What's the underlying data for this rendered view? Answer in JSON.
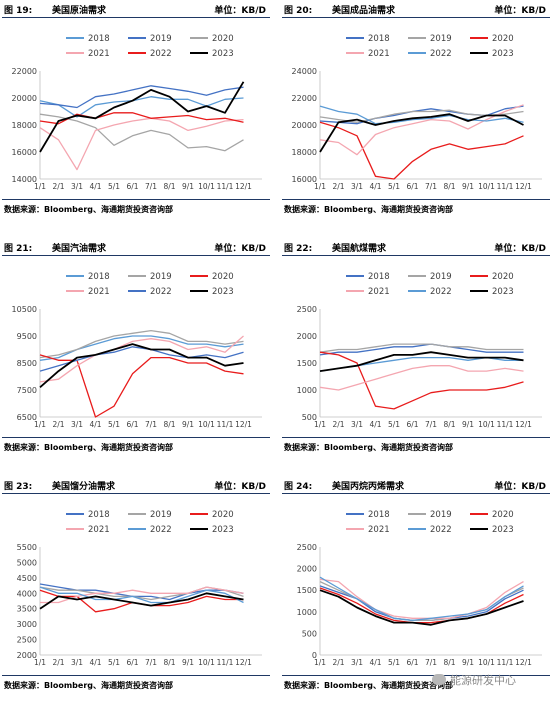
{
  "figures": [
    {
      "num": "图 19:",
      "title": "美国原油需求",
      "unit": "单位：KB/D",
      "source": "数据来源：Bloomberg、海通期货投资咨询部"
    },
    {
      "num": "图 20:",
      "title": "美国成品油需求",
      "unit": "单位：KB/D",
      "source": "数据来源：Bloomberg、海通期货投资咨询部"
    },
    {
      "num": "图 21:",
      "title": "美国汽油需求",
      "unit": "单位：KB/D",
      "source": "数据来源：Bloomberg、海通期货投资咨询部"
    },
    {
      "num": "图 22:",
      "title": "美国航煤需求",
      "unit": "单位：KB/D",
      "source": "数据来源：Bloomberg、海通期货投资咨询部"
    },
    {
      "num": "图 23:",
      "title": "美国馏分油需求",
      "unit": "单位：KB/D",
      "source": "数据来源：Bloomberg、海通期货投资咨询部"
    },
    {
      "num": "图 24:",
      "title": "美国丙烷丙烯需求",
      "unit": "单位：KB/D",
      "source": "数据来源：Bloomberg、海通期货投资咨询部"
    }
  ],
  "watermark": "能源研发中心",
  "series_colors": {
    "2018": "#5b9bd5",
    "2019": "#4472c4",
    "2020": "#a5a5a5",
    "2021": "#f4a6b0",
    "2022": "#e81c1c",
    "2023": "#000000"
  },
  "chart_data": [
    {
      "type": "line",
      "x": [
        "1/1",
        "2/1",
        "3/1",
        "4/1",
        "5/1",
        "6/1",
        "7/1",
        "8/1",
        "9/1",
        "10/1",
        "11/1",
        "12/1"
      ],
      "ylim": [
        14000,
        22000
      ],
      "yticks": [
        14000,
        16000,
        18000,
        20000,
        22000
      ],
      "legend": "top",
      "series": [
        {
          "name": "2018",
          "color": "#5b9bd5",
          "values": [
            19800,
            19500,
            18600,
            19500,
            19700,
            19800,
            20100,
            19900,
            19900,
            19400,
            19900,
            20000
          ]
        },
        {
          "name": "2019",
          "color": "#4472c4",
          "values": [
            19600,
            19500,
            19300,
            20100,
            20300,
            20600,
            20900,
            20700,
            20500,
            20200,
            20600,
            20800
          ]
        },
        {
          "name": "2020",
          "color": "#a5a5a5",
          "values": [
            18800,
            18600,
            18300,
            17800,
            16500,
            17200,
            17600,
            17300,
            16300,
            16400,
            16100,
            16900
          ]
        },
        {
          "name": "2021",
          "color": "#f4a6b0",
          "values": [
            17800,
            16900,
            14700,
            17600,
            18000,
            18300,
            18500,
            18300,
            17600,
            17900,
            18300,
            18400
          ]
        },
        {
          "name": "2022",
          "color": "#e81c1c",
          "values": [
            18300,
            18100,
            18800,
            18500,
            18900,
            18900,
            18500,
            18600,
            18700,
            18400,
            18500,
            18200
          ]
        },
        {
          "name": "2023",
          "color": "#000000",
          "values": [
            16000,
            18300,
            18700,
            18500,
            19300,
            19800,
            20600,
            20100,
            19000,
            19400,
            18900,
            21200
          ]
        }
      ]
    },
    {
      "type": "line",
      "x": [
        "1/1",
        "2/1",
        "3/1",
        "4/1",
        "5/1",
        "6/1",
        "7/1",
        "8/1",
        "9/1",
        "10/1",
        "11/1",
        "12/1"
      ],
      "ylim": [
        16000,
        24000
      ],
      "yticks": [
        16000,
        18000,
        20000,
        22000,
        24000
      ],
      "legend": "top",
      "series": [
        {
          "name": "2018",
          "color": "#4472c4",
          "values": [
            20300,
            20200,
            20100,
            20500,
            20700,
            21000,
            21200,
            21000,
            20800,
            20700,
            21200,
            21400
          ]
        },
        {
          "name": "2019",
          "color": "#a5a5a5",
          "values": [
            20600,
            20400,
            20200,
            20500,
            20800,
            21000,
            21000,
            21100,
            20800,
            20700,
            20800,
            21000
          ]
        },
        {
          "name": "2020",
          "color": "#e81c1c",
          "values": [
            20200,
            19800,
            19200,
            16200,
            15800,
            17300,
            18200,
            18600,
            18200,
            18400,
            18600,
            19200
          ]
        },
        {
          "name": "2021",
          "color": "#f4a6b0",
          "values": [
            18900,
            18700,
            17800,
            19300,
            19800,
            20100,
            20400,
            20300,
            19700,
            20400,
            21000,
            21500
          ]
        },
        {
          "name": "2022",
          "color": "#5b9bd5",
          "values": [
            21400,
            21000,
            20800,
            20100,
            20200,
            20400,
            20500,
            20700,
            20400,
            20300,
            20500,
            20200
          ]
        },
        {
          "name": "2023",
          "color": "#000000",
          "values": [
            18000,
            20200,
            20400,
            20000,
            20300,
            20500,
            20600,
            20800,
            20300,
            20700,
            20700,
            20000
          ]
        }
      ]
    },
    {
      "type": "line",
      "x": [
        "1/1",
        "2/1",
        "3/1",
        "4/1",
        "5/1",
        "6/1",
        "7/1",
        "8/1",
        "9/1",
        "10/1",
        "11/1",
        "12/1"
      ],
      "ylim": [
        6500,
        10500
      ],
      "yticks": [
        6500,
        7500,
        8500,
        9500,
        10500
      ],
      "legend": "top",
      "series": [
        {
          "name": "2018",
          "color": "#5b9bd5",
          "values": [
            8600,
            8700,
            9000,
            9200,
            9400,
            9500,
            9500,
            9400,
            9200,
            9200,
            9100,
            9200
          ]
        },
        {
          "name": "2019",
          "color": "#a5a5a5",
          "values": [
            8700,
            8800,
            9000,
            9300,
            9500,
            9600,
            9700,
            9600,
            9300,
            9300,
            9200,
            9300
          ]
        },
        {
          "name": "2020",
          "color": "#e81c1c",
          "values": [
            8800,
            8600,
            8600,
            5800,
            6900,
            8100,
            8700,
            8700,
            8500,
            8500,
            8200,
            8100
          ]
        },
        {
          "name": "2021",
          "color": "#f4a6b0",
          "values": [
            7800,
            7900,
            8400,
            8800,
            9000,
            9300,
            9400,
            9300,
            9000,
            9100,
            8900,
            9500
          ]
        },
        {
          "name": "2022",
          "color": "#4472c4",
          "values": [
            8200,
            8400,
            8600,
            8800,
            8900,
            9100,
            9000,
            8800,
            8700,
            8800,
            8700,
            8900
          ]
        },
        {
          "name": "2023",
          "color": "#000000",
          "values": [
            7600,
            8200,
            8700,
            8800,
            9000,
            9200,
            9000,
            9000,
            8700,
            8700,
            8400,
            8500
          ]
        }
      ]
    },
    {
      "type": "line",
      "x": [
        "1/1",
        "2/1",
        "3/1",
        "4/1",
        "5/1",
        "6/1",
        "7/1",
        "8/1",
        "9/1",
        "10/1",
        "11/1",
        "12/1"
      ],
      "ylim": [
        500,
        2500
      ],
      "yticks": [
        500,
        1000,
        1500,
        2000,
        2500
      ],
      "legend": "top",
      "series": [
        {
          "name": "2018",
          "color": "#4472c4",
          "values": [
            1650,
            1700,
            1700,
            1750,
            1800,
            1800,
            1850,
            1800,
            1750,
            1700,
            1700,
            1700
          ]
        },
        {
          "name": "2019",
          "color": "#a5a5a5",
          "values": [
            1700,
            1750,
            1750,
            1800,
            1850,
            1850,
            1850,
            1800,
            1800,
            1750,
            1750,
            1750
          ]
        },
        {
          "name": "2020",
          "color": "#e81c1c",
          "values": [
            1700,
            1650,
            1500,
            700,
            650,
            800,
            950,
            1000,
            1000,
            1000,
            1050,
            1150
          ]
        },
        {
          "name": "2021",
          "color": "#f4a6b0",
          "values": [
            1050,
            1000,
            1100,
            1200,
            1300,
            1400,
            1450,
            1450,
            1350,
            1350,
            1400,
            1350
          ]
        },
        {
          "name": "2022",
          "color": "#5b9bd5",
          "values": [
            1350,
            1400,
            1450,
            1500,
            1550,
            1600,
            1600,
            1600,
            1550,
            1600,
            1550,
            1550
          ]
        },
        {
          "name": "2023",
          "color": "#000000",
          "values": [
            1350,
            1400,
            1450,
            1550,
            1650,
            1650,
            1700,
            1650,
            1600,
            1600,
            1600,
            1550
          ]
        }
      ]
    },
    {
      "type": "line",
      "x": [
        "1/1",
        "2/1",
        "3/1",
        "4/1",
        "5/1",
        "6/1",
        "7/1",
        "8/1",
        "9/1",
        "10/1",
        "11/1",
        "12/1"
      ],
      "ylim": [
        2000,
        5500
      ],
      "yticks": [
        2000,
        2500,
        3000,
        3500,
        4000,
        4500,
        5000,
        5500
      ],
      "legend": "top",
      "series": [
        {
          "name": "2018",
          "color": "#4472c4",
          "values": [
            4300,
            4200,
            4100,
            4100,
            4000,
            3900,
            3900,
            3800,
            4000,
            4100,
            4100,
            4000
          ]
        },
        {
          "name": "2019",
          "color": "#a5a5a5",
          "values": [
            4200,
            4100,
            4100,
            4000,
            3900,
            3900,
            3800,
            3900,
            4000,
            4200,
            4100,
            3900
          ]
        },
        {
          "name": "2020",
          "color": "#e81c1c",
          "values": [
            4100,
            3900,
            3900,
            3400,
            3500,
            3700,
            3600,
            3600,
            3700,
            3900,
            3800,
            3800
          ]
        },
        {
          "name": "2021",
          "color": "#f4a6b0",
          "values": [
            3700,
            3700,
            3900,
            4000,
            4000,
            4100,
            4000,
            4000,
            4000,
            4200,
            4100,
            4000
          ]
        },
        {
          "name": "2022",
          "color": "#5b9bd5",
          "values": [
            4200,
            4000,
            4000,
            3800,
            3800,
            3900,
            3700,
            3700,
            3900,
            4100,
            4000,
            3700
          ]
        },
        {
          "name": "2023",
          "color": "#000000",
          "values": [
            3500,
            3900,
            3800,
            3900,
            3800,
            3700,
            3600,
            3700,
            3800,
            4000,
            3900,
            3800
          ]
        }
      ]
    },
    {
      "type": "line",
      "x": [
        "1/1",
        "2/1",
        "3/1",
        "4/1",
        "5/1",
        "6/1",
        "7/1",
        "8/1",
        "9/1",
        "10/1",
        "11/1",
        "12/1"
      ],
      "ylim": [
        0,
        2500
      ],
      "yticks": [
        0,
        500,
        1000,
        1500,
        2000,
        2500
      ],
      "legend": "top",
      "series": [
        {
          "name": "2018",
          "color": "#4472c4",
          "values": [
            1600,
            1450,
            1300,
            1000,
            850,
            800,
            800,
            850,
            900,
            1000,
            1300,
            1500
          ]
        },
        {
          "name": "2019",
          "color": "#a5a5a5",
          "values": [
            1700,
            1500,
            1300,
            1050,
            850,
            800,
            800,
            850,
            950,
            1050,
            1350,
            1550
          ]
        },
        {
          "name": "2020",
          "color": "#e81c1c",
          "values": [
            1550,
            1400,
            1200,
            950,
            800,
            750,
            750,
            800,
            850,
            950,
            1200,
            1400
          ]
        },
        {
          "name": "2021",
          "color": "#f4a6b0",
          "values": [
            1750,
            1700,
            1350,
            1050,
            900,
            850,
            850,
            850,
            950,
            1100,
            1450,
            1700
          ]
        },
        {
          "name": "2022",
          "color": "#5b9bd5",
          "values": [
            1800,
            1550,
            1300,
            1050,
            850,
            800,
            850,
            900,
            950,
            1050,
            1350,
            1600
          ]
        },
        {
          "name": "2023",
          "color": "#000000",
          "values": [
            1500,
            1350,
            1100,
            900,
            750,
            750,
            700,
            800,
            850,
            950,
            1100,
            1250
          ]
        }
      ]
    }
  ]
}
